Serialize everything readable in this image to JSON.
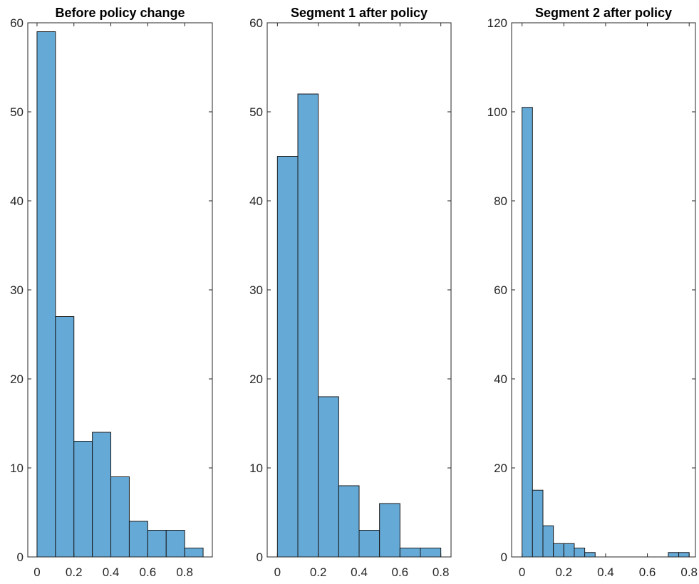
{
  "colors": {
    "bar_fill": "#65a9d7",
    "bar_edge": "#1a1a1a",
    "axis": "#262626"
  },
  "chart_data": [
    {
      "type": "bar",
      "subtype": "histogram",
      "title": "Before policy change",
      "xlabel": "",
      "ylabel": "",
      "bin_edges": [
        0,
        0.1,
        0.2,
        0.3,
        0.4,
        0.5,
        0.6,
        0.7,
        0.8,
        0.9
      ],
      "values": [
        59,
        27,
        13,
        14,
        9,
        4,
        3,
        3,
        1
      ],
      "xlim": [
        -0.05,
        0.95
      ],
      "ylim": [
        0,
        60
      ],
      "xticks": [
        0,
        0.2,
        0.4,
        0.6,
        0.8
      ],
      "xtick_labels": [
        "0",
        "0.2",
        "0.4",
        "0.6",
        "0.8"
      ],
      "yticks": [
        0,
        10,
        20,
        30,
        40,
        50,
        60
      ],
      "ytick_labels": [
        "0",
        "10",
        "20",
        "30",
        "40",
        "50",
        "60"
      ],
      "grid": false
    },
    {
      "type": "bar",
      "subtype": "histogram",
      "title": "Segment 1 after policy",
      "xlabel": "",
      "ylabel": "",
      "bin_edges": [
        0,
        0.1,
        0.2,
        0.3,
        0.4,
        0.5,
        0.6,
        0.7,
        0.8
      ],
      "values": [
        45,
        52,
        18,
        8,
        3,
        6,
        1,
        1
      ],
      "xlim": [
        -0.05,
        0.85
      ],
      "ylim": [
        0,
        60
      ],
      "xticks": [
        0,
        0.2,
        0.4,
        0.6,
        0.8
      ],
      "xtick_labels": [
        "0",
        "0.2",
        "0.4",
        "0.6",
        "0.8"
      ],
      "yticks": [
        0,
        10,
        20,
        30,
        40,
        50,
        60
      ],
      "ytick_labels": [
        "0",
        "10",
        "20",
        "30",
        "40",
        "50",
        "60"
      ],
      "grid": false
    },
    {
      "type": "bar",
      "subtype": "histogram",
      "title": "Segment 2 after policy",
      "xlabel": "",
      "ylabel": "",
      "bin_edges": [
        0,
        0.05,
        0.1,
        0.15,
        0.2,
        0.25,
        0.3,
        0.35,
        0.4,
        0.45,
        0.5,
        0.55,
        0.6,
        0.65,
        0.7,
        0.75,
        0.8
      ],
      "values": [
        101,
        15,
        7,
        3,
        3,
        2,
        1,
        0,
        0,
        0,
        0,
        0,
        0,
        0,
        1,
        1
      ],
      "xlim": [
        -0.05,
        0.83
      ],
      "ylim": [
        0,
        120
      ],
      "xticks": [
        0,
        0.2,
        0.4,
        0.6,
        0.8
      ],
      "xtick_labels": [
        "0",
        "0.2",
        "0.4",
        "0.6",
        "0.8"
      ],
      "yticks": [
        0,
        20,
        40,
        60,
        80,
        100,
        120
      ],
      "ytick_labels": [
        "0",
        "20",
        "40",
        "60",
        "80",
        "100",
        "120"
      ],
      "grid": false
    }
  ]
}
